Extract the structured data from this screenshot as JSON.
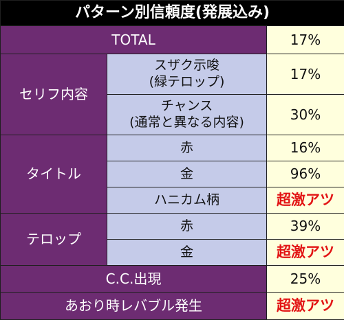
{
  "title": "パターン別信頼度(発展込み)",
  "colors": {
    "header_bg": "#000000",
    "category_bg": "#6d2c72",
    "subcategory_bg": "#c5cbe9",
    "value_bg": "#ffffdd",
    "hot_text": "#e21414"
  },
  "rows": {
    "total": {
      "label": "TOTAL",
      "value": "17%"
    },
    "serifu": {
      "label": "セリフ内容",
      "items": [
        {
          "line1": "スザク示唆",
          "line2": "(緑テロップ)",
          "value": "17%"
        },
        {
          "line1": "チャンス",
          "line2": "(通常と異なる内容)",
          "value": "30%"
        }
      ]
    },
    "title_group": {
      "label": "タイトル",
      "items": [
        {
          "label": "赤",
          "value": "16%"
        },
        {
          "label": "金",
          "value": "96%"
        },
        {
          "label": "ハニカム柄",
          "value": "超激アツ"
        }
      ]
    },
    "telop": {
      "label": "テロップ",
      "items": [
        {
          "label": "赤",
          "value": "39%"
        },
        {
          "label": "金",
          "value": "超激アツ"
        }
      ]
    },
    "cc": {
      "label": "C.C.出現",
      "value": "25%"
    },
    "aori": {
      "label": "あおり時レバブル発生",
      "value": "超激アツ"
    }
  }
}
